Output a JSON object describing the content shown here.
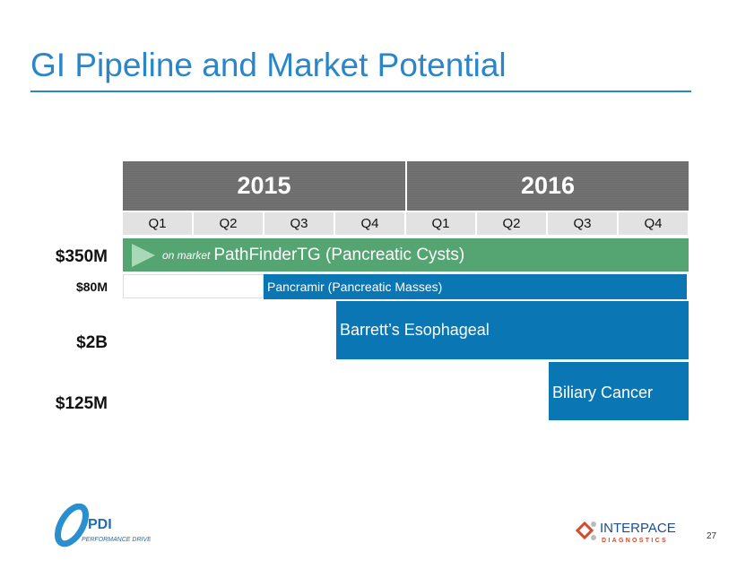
{
  "title": "GI Pipeline and Market Potential",
  "years": [
    "2015",
    "2016"
  ],
  "quarters": [
    "Q1",
    "Q2",
    "Q3",
    "Q4",
    "Q1",
    "Q2",
    "Q3",
    "Q4"
  ],
  "rows": [
    {
      "value": "$350M",
      "prefix": "on market",
      "label": "PathFinderTG (Pancreatic Cysts)",
      "color": "#55a572",
      "start_quarter": 1,
      "end_quarter": 8
    },
    {
      "value": "$80M",
      "label": "Pancramir (Pancreatic Masses)",
      "color": "#0a77b4",
      "start_quarter": 3,
      "end_quarter": 8
    },
    {
      "value": "$2B",
      "label": "Barrett’s Esophageal",
      "color": "#0a77b4",
      "start_quarter": 4,
      "end_quarter": 8
    },
    {
      "value": "$125M",
      "label": "Biliary Cancer",
      "color": "#0a77b4",
      "start_quarter": 7,
      "end_quarter": 8
    }
  ],
  "footer": {
    "left_logo": "PDI Performance Driven",
    "right_logo": "INTERPACE DIAGNOSTICS",
    "page_number": "27"
  }
}
